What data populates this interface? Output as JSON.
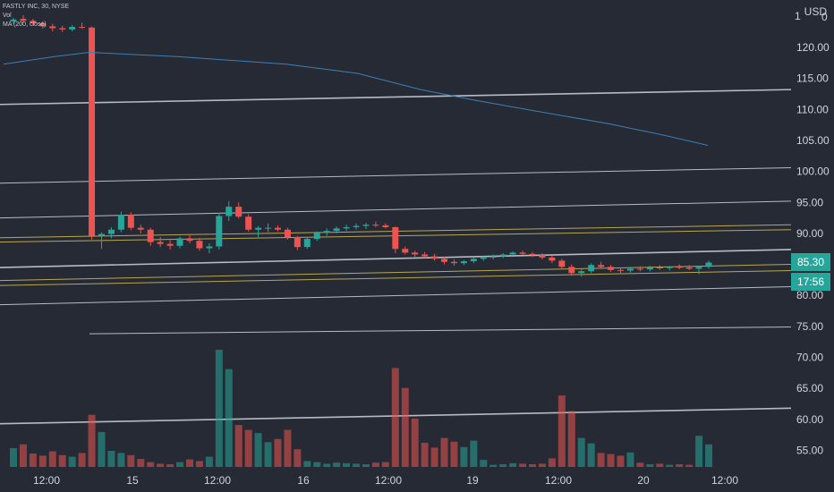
{
  "legend": {
    "title": "FASTLY INC, 30, NYSE",
    "vol": "Vol",
    "ma": "MA (200, close)"
  },
  "axis": {
    "currency": "USD",
    "price_ticks": [
      "120.00",
      "115.00",
      "110.00",
      "105.00",
      "100.00",
      "95.00",
      "90.00",
      "85.00",
      "80.00",
      "75.00",
      "70.00",
      "65.00",
      "60.00",
      "55.00"
    ],
    "time_ticks": [
      "12:00",
      "15",
      "12:00",
      "16",
      "12:00",
      "19",
      "12:00",
      "20",
      "12:00"
    ]
  },
  "last_price": "85.30",
  "countdown": "17:56",
  "colors": {
    "background": "#262a34",
    "up": "#26a69a",
    "down": "#ef5350",
    "ma_line": "#3d7fb5",
    "level_white": "#d1d4dc",
    "level_yellow": "#c9b458"
  },
  "chart_data": {
    "type": "candlestick",
    "title": "FASTLY INC, 30, NYSE",
    "ylim": [
      52,
      125
    ],
    "x_ticks": [
      "12:00",
      "15",
      "12:00",
      "16",
      "12:00",
      "19",
      "12:00",
      "20",
      "12:00"
    ],
    "ohlc": [
      [
        124.2,
        124.8,
        123.8,
        124.5
      ],
      [
        124.6,
        125.2,
        124.0,
        124.3
      ],
      [
        124.3,
        124.6,
        123.5,
        123.9
      ],
      [
        123.9,
        124.2,
        123.0,
        123.4
      ],
      [
        123.4,
        123.8,
        122.6,
        123.1
      ],
      [
        123.1,
        123.5,
        122.5,
        122.9
      ],
      [
        122.9,
        123.6,
        122.6,
        123.3
      ],
      [
        123.3,
        124.0,
        123.0,
        123.2
      ],
      [
        123.2,
        123.4,
        89.0,
        89.6
      ],
      [
        89.6,
        90.2,
        87.5,
        89.9
      ],
      [
        89.9,
        91.0,
        89.2,
        90.6
      ],
      [
        90.6,
        93.5,
        90.2,
        93.0
      ],
      [
        93.0,
        93.4,
        90.5,
        90.9
      ],
      [
        90.9,
        91.4,
        90.0,
        90.6
      ],
      [
        90.6,
        90.9,
        88.0,
        88.6
      ],
      [
        88.6,
        89.4,
        87.8,
        88.3
      ],
      [
        88.3,
        88.9,
        87.4,
        88.0
      ],
      [
        88.0,
        89.5,
        87.6,
        89.2
      ],
      [
        89.2,
        89.9,
        88.4,
        88.8
      ],
      [
        88.8,
        89.3,
        87.2,
        87.6
      ],
      [
        87.6,
        88.4,
        86.8,
        87.9
      ],
      [
        87.9,
        93.3,
        87.4,
        92.8
      ],
      [
        92.8,
        95.2,
        92.0,
        94.3
      ],
      [
        94.3,
        95.0,
        92.4,
        92.7
      ],
      [
        92.7,
        93.1,
        90.3,
        90.6
      ],
      [
        90.6,
        91.2,
        89.4,
        90.9
      ],
      [
        90.9,
        91.6,
        90.2,
        90.9
      ],
      [
        90.9,
        91.3,
        90.3,
        90.6
      ],
      [
        90.6,
        90.9,
        89.0,
        89.4
      ],
      [
        89.4,
        89.6,
        87.3,
        87.8
      ],
      [
        87.8,
        89.4,
        87.5,
        89.1
      ],
      [
        89.1,
        90.3,
        88.8,
        90.1
      ],
      [
        90.1,
        90.8,
        89.6,
        90.4
      ],
      [
        90.4,
        91.1,
        90.0,
        90.8
      ],
      [
        90.8,
        91.4,
        90.4,
        91.0
      ],
      [
        91.0,
        91.6,
        90.6,
        91.2
      ],
      [
        91.2,
        91.7,
        90.7,
        91.4
      ],
      [
        91.4,
        91.9,
        91.0,
        91.3
      ],
      [
        91.3,
        91.6,
        90.8,
        91.0
      ],
      [
        91.0,
        91.1,
        86.8,
        87.5
      ],
      [
        87.5,
        87.9,
        86.6,
        86.9
      ],
      [
        86.9,
        87.2,
        86.2,
        86.6
      ],
      [
        86.6,
        87.0,
        86.0,
        86.3
      ],
      [
        86.3,
        86.7,
        85.6,
        85.9
      ],
      [
        85.9,
        86.2,
        85.0,
        85.4
      ],
      [
        85.4,
        85.8,
        84.8,
        85.2
      ],
      [
        85.2,
        85.7,
        84.9,
        85.5
      ],
      [
        85.5,
        86.1,
        85.2,
        85.9
      ],
      [
        85.9,
        86.3,
        85.6,
        86.1
      ],
      [
        86.1,
        86.6,
        85.8,
        86.3
      ],
      [
        86.3,
        86.8,
        86.0,
        86.6
      ],
      [
        86.6,
        87.1,
        86.4,
        86.9
      ],
      [
        86.9,
        87.2,
        86.5,
        86.7
      ],
      [
        86.7,
        87.0,
        86.2,
        86.5
      ],
      [
        86.5,
        86.8,
        85.8,
        86.1
      ],
      [
        86.1,
        86.4,
        85.2,
        85.6
      ],
      [
        85.6,
        85.9,
        84.2,
        84.6
      ],
      [
        84.6,
        85.0,
        83.2,
        83.6
      ],
      [
        83.6,
        84.2,
        83.0,
        83.9
      ],
      [
        83.9,
        85.2,
        83.6,
        84.9
      ],
      [
        84.9,
        85.4,
        84.3,
        84.6
      ],
      [
        84.6,
        84.9,
        83.8,
        84.1
      ],
      [
        84.1,
        84.5,
        83.6,
        84.0
      ],
      [
        84.0,
        84.6,
        83.7,
        84.3
      ],
      [
        84.3,
        84.7,
        83.9,
        84.2
      ],
      [
        84.2,
        84.8,
        83.9,
        84.5
      ],
      [
        84.5,
        84.9,
        84.1,
        84.4
      ],
      [
        84.4,
        84.8,
        84.0,
        84.6
      ],
      [
        84.6,
        85.0,
        84.2,
        84.5
      ],
      [
        84.5,
        84.9,
        84.1,
        84.3
      ],
      [
        84.3,
        84.8,
        83.4,
        84.6
      ],
      [
        84.6,
        85.6,
        84.3,
        85.3
      ]
    ],
    "volume": [
      3.5,
      4.2,
      2.5,
      2.1,
      2.9,
      2.2,
      1.9,
      2.6,
      9.7,
      6.5,
      3.0,
      2.6,
      2.2,
      1.5,
      0.9,
      0.6,
      0.5,
      0.9,
      1.4,
      1.1,
      1.9,
      21.8,
      18.2,
      7.8,
      6.9,
      6.3,
      4.6,
      5.2,
      6.9,
      3.3,
      1.1,
      0.9,
      0.6,
      0.8,
      0.7,
      0.6,
      0.5,
      0.8,
      0.9,
      18.4,
      14.7,
      9.0,
      4.5,
      3.6,
      5.4,
      4.7,
      3.7,
      4.9,
      1.3,
      0.4,
      0.5,
      0.7,
      0.6,
      0.5,
      0.6,
      1.6,
      13.3,
      10.4,
      5.4,
      4.4,
      2.6,
      2.4,
      2.1,
      2.7,
      0.8,
      0.5,
      0.6,
      0.4,
      0.5,
      0.4,
      5.8,
      4.2
    ],
    "volume_ylim": [
      0,
      45
    ],
    "moving_average_200": [
      [
        4,
        117.3
      ],
      [
        60,
        118.5
      ],
      [
        100,
        119.2
      ],
      [
        200,
        118.5
      ],
      [
        320,
        117.3
      ],
      [
        400,
        115.8
      ],
      [
        470,
        113.2
      ],
      [
        530,
        111.5
      ],
      [
        600,
        109.7
      ],
      [
        680,
        107.7
      ],
      [
        740,
        105.9
      ],
      [
        791,
        104.2
      ]
    ],
    "levels": [
      {
        "color": "white",
        "x": [
          0,
          884
        ],
        "y": [
          110.8,
          113.2
        ]
      },
      {
        "color": "white",
        "x": [
          0,
          884
        ],
        "y": [
          98.1,
          100.6
        ]
      },
      {
        "color": "white",
        "x": [
          0,
          884
        ],
        "y": [
          92.5,
          95.2
        ]
      },
      {
        "color": "yellow",
        "x": [
          0,
          884
        ],
        "y": [
          89.3,
          91.4
        ]
      },
      {
        "color": "yellow",
        "x": [
          0,
          884
        ],
        "y": [
          88.6,
          90.6
        ]
      },
      {
        "color": "white",
        "x": [
          0,
          884
        ],
        "y": [
          84.5,
          87.4
        ]
      },
      {
        "color": "yellow",
        "x": [
          0,
          884
        ],
        "y": [
          82.4,
          85.0
        ]
      },
      {
        "color": "yellow",
        "x": [
          0,
          884
        ],
        "y": [
          81.6,
          84.0
        ]
      },
      {
        "color": "white",
        "x": [
          0,
          884
        ],
        "y": [
          78.5,
          81.4
        ]
      },
      {
        "color": "white",
        "x": [
          100,
          884
        ],
        "y": [
          73.8,
          74.9
        ]
      },
      {
        "color": "white",
        "x": [
          0,
          884
        ],
        "y": [
          59.3,
          61.8
        ]
      }
    ]
  }
}
